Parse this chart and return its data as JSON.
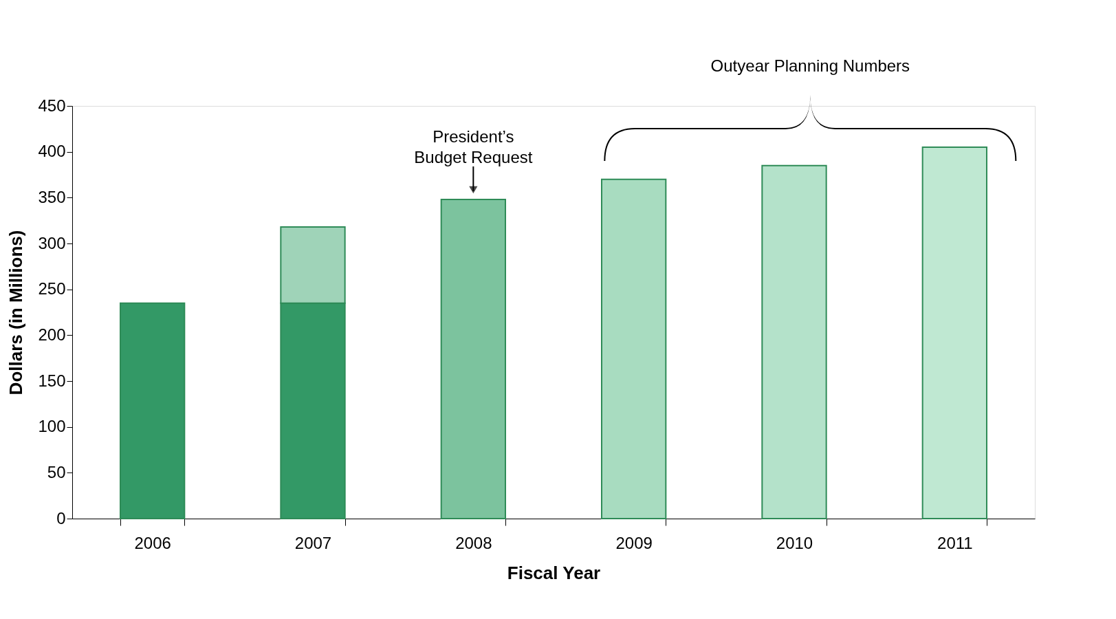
{
  "chart_data": {
    "type": "bar",
    "stacked": true,
    "xlabel": "Fiscal Year",
    "ylabel": "Dollars (in Millions)",
    "categories": [
      "2006",
      "2007",
      "2008",
      "2009",
      "2010",
      "2011"
    ],
    "series": [
      {
        "color": "#339966",
        "values": [
          235,
          235,
          null,
          null,
          null,
          null
        ]
      },
      {
        "colors": [
          "#339966",
          "#9fd3b8",
          "#7cc39e",
          "#a8dcc0",
          "#b4e2ca",
          "#bfe8d2"
        ],
        "values": [
          null,
          83,
          348,
          370,
          385,
          405
        ]
      }
    ],
    "ylim": [
      0,
      450
    ],
    "yticks": [
      0,
      50,
      100,
      150,
      200,
      250,
      300,
      350,
      400,
      450
    ],
    "grid": false,
    "annotations": [
      {
        "text": "President’s Budget Request",
        "x": "2008",
        "y": 348
      },
      "Outyear Planning Numbers"
    ]
  }
}
